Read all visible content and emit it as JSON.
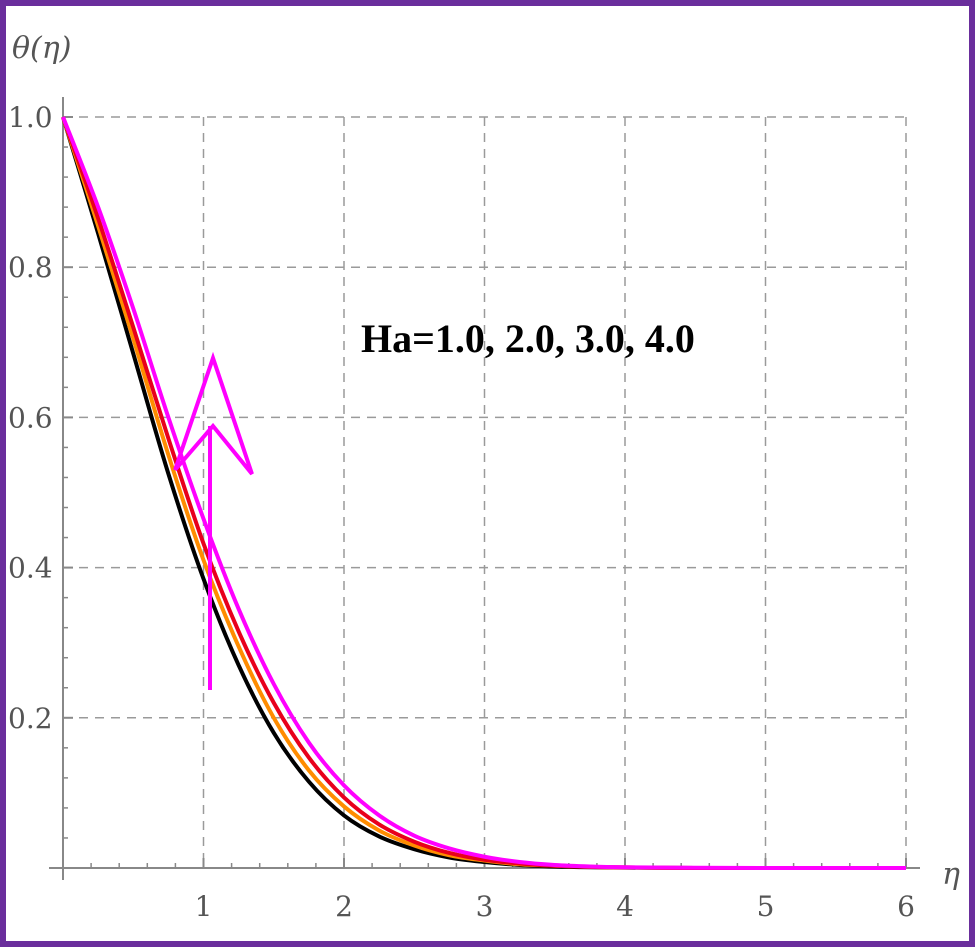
{
  "chart_data": {
    "type": "line",
    "title": "",
    "xlabel": "η",
    "ylabel": "θ(η)",
    "xlim": [
      0,
      6
    ],
    "ylim": [
      0,
      1
    ],
    "x_ticks": [
      "1",
      "2",
      "3",
      "4",
      "5",
      "6"
    ],
    "y_ticks": [
      "0.2",
      "0.4",
      "0.6",
      "0.8",
      "1.0"
    ],
    "grid": true,
    "annotation": "Ha=1.0, 2.0, 3.0, 4.0",
    "arrow_direction": "up",
    "arrow_color": "#ff00ff",
    "x": [
      0,
      0.25,
      0.5,
      0.75,
      1,
      1.25,
      1.5,
      1.75,
      2,
      2.25,
      2.5,
      2.75,
      3,
      3.25,
      3.5,
      3.75,
      4,
      4.5,
      5,
      5.5,
      6
    ],
    "series": [
      {
        "color": "#000000",
        "values": [
          1.0,
          0.845,
          0.685,
          0.525,
          0.385,
          0.27,
          0.18,
          0.115,
          0.07,
          0.042,
          0.025,
          0.014,
          0.008,
          0.004,
          0.002,
          0.001,
          0.0005,
          0,
          0,
          0,
          0
        ]
      },
      {
        "color": "#ff8c00",
        "values": [
          1.0,
          0.855,
          0.705,
          0.55,
          0.41,
          0.295,
          0.2,
          0.13,
          0.082,
          0.05,
          0.03,
          0.017,
          0.01,
          0.005,
          0.003,
          0.0015,
          0.0008,
          0,
          0,
          0,
          0
        ]
      },
      {
        "color": "#e8001c",
        "values": [
          1.0,
          0.865,
          0.72,
          0.572,
          0.432,
          0.315,
          0.22,
          0.147,
          0.094,
          0.058,
          0.035,
          0.02,
          0.011,
          0.006,
          0.003,
          0.0015,
          0.0008,
          0,
          0,
          0,
          0
        ]
      },
      {
        "color": "#ff00ff",
        "values": [
          1.0,
          0.88,
          0.745,
          0.6,
          0.465,
          0.345,
          0.245,
          0.167,
          0.11,
          0.07,
          0.043,
          0.026,
          0.015,
          0.008,
          0.004,
          0.002,
          0.001,
          0.0003,
          0,
          0,
          0
        ]
      }
    ]
  }
}
